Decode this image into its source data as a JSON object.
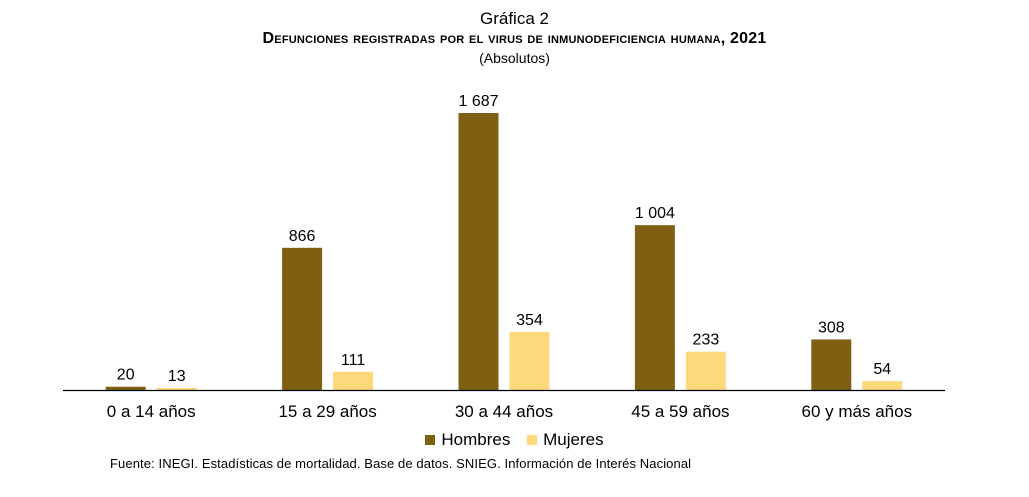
{
  "chart_data": {
    "type": "bar",
    "chart_label": "Gráfica 2",
    "title": "Defunciones registradas por el virus de inmunodeficiencia humana, 2021",
    "subtitle": "(Absolutos)",
    "categories": [
      "0 a 14 años",
      "15 a 29 años",
      "30 a 44 años",
      "45 a 59 años",
      "60 y más años"
    ],
    "series": [
      {
        "name": "Hombres",
        "color": "#7f5f12",
        "values": [
          20,
          866,
          1687,
          1004,
          308
        ],
        "labels": [
          "20",
          "866",
          "1 687",
          "1 004",
          "308"
        ]
      },
      {
        "name": "Mujeres",
        "color": "#fdd97c",
        "values": [
          13,
          111,
          354,
          233,
          54
        ],
        "labels": [
          "13",
          "111",
          "354",
          "233",
          "54"
        ]
      }
    ],
    "ylim": [
      0,
      1687
    ],
    "grid": false,
    "legend_position": "bottom",
    "source": "Fuente: INEGI. Estadísticas de mortalidad. Base de datos. SNIEG. Información de Interés Nacional"
  }
}
